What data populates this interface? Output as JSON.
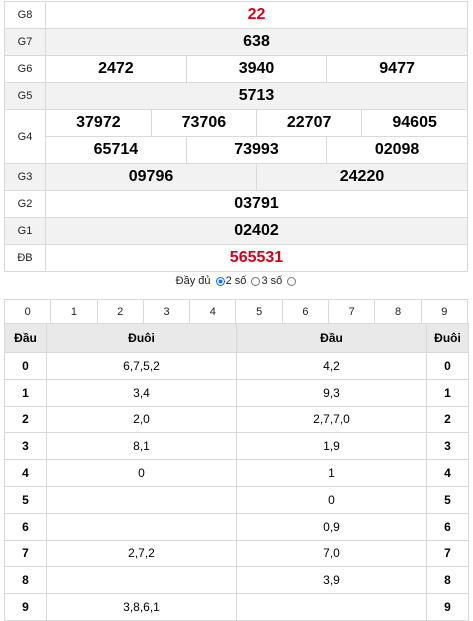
{
  "prizes": {
    "g8": {
      "label": "G8",
      "values": [
        "22"
      ]
    },
    "g7": {
      "label": "G7",
      "values": [
        "638"
      ]
    },
    "g6": {
      "label": "G6",
      "values": [
        "2472",
        "3940",
        "9477"
      ]
    },
    "g5": {
      "label": "G5",
      "values": [
        "5713"
      ]
    },
    "g4": {
      "label": "G4",
      "values": [
        "37972",
        "73706",
        "22707",
        "94605",
        "65714",
        "73993",
        "02098"
      ]
    },
    "g3": {
      "label": "G3",
      "values": [
        "09796",
        "24220"
      ]
    },
    "g2": {
      "label": "G2",
      "values": [
        "03791"
      ]
    },
    "g1": {
      "label": "G1",
      "values": [
        "02402"
      ]
    },
    "db": {
      "label": "ĐB",
      "values": [
        "565531"
      ]
    }
  },
  "accent_color": "#d0021b",
  "display_options": {
    "full": "Đầy đủ",
    "two": "2 số",
    "three": "3 số",
    "selected": "2 số"
  },
  "digits": [
    "0",
    "1",
    "2",
    "3",
    "4",
    "5",
    "6",
    "7",
    "8",
    "9"
  ],
  "loto": {
    "headers": [
      "Đầu",
      "Đuôi",
      "Đầu",
      "Đuôi"
    ],
    "rows": [
      {
        "head": "0",
        "tail_values": "6,7,5,2",
        "head_values": "4,2",
        "tail": "0"
      },
      {
        "head": "1",
        "tail_values": "3,4",
        "head_values": "9,3",
        "tail": "1"
      },
      {
        "head": "2",
        "tail_values": "2,0",
        "head_values": "2,7,7,0",
        "tail": "2"
      },
      {
        "head": "3",
        "tail_values": "8,1",
        "head_values": "1,9",
        "tail": "3"
      },
      {
        "head": "4",
        "tail_values": "0",
        "head_values": "1",
        "tail": "4"
      },
      {
        "head": "5",
        "tail_values": "",
        "head_values": "0",
        "tail": "5"
      },
      {
        "head": "6",
        "tail_values": "",
        "head_values": "0,9",
        "tail": "6"
      },
      {
        "head": "7",
        "tail_values": "2,7,2",
        "head_values": "7,0",
        "tail": "7"
      },
      {
        "head": "8",
        "tail_values": "",
        "head_values": "3,9",
        "tail": "8"
      },
      {
        "head": "9",
        "tail_values": "3,8,6,1",
        "head_values": "",
        "tail": "9"
      }
    ]
  }
}
